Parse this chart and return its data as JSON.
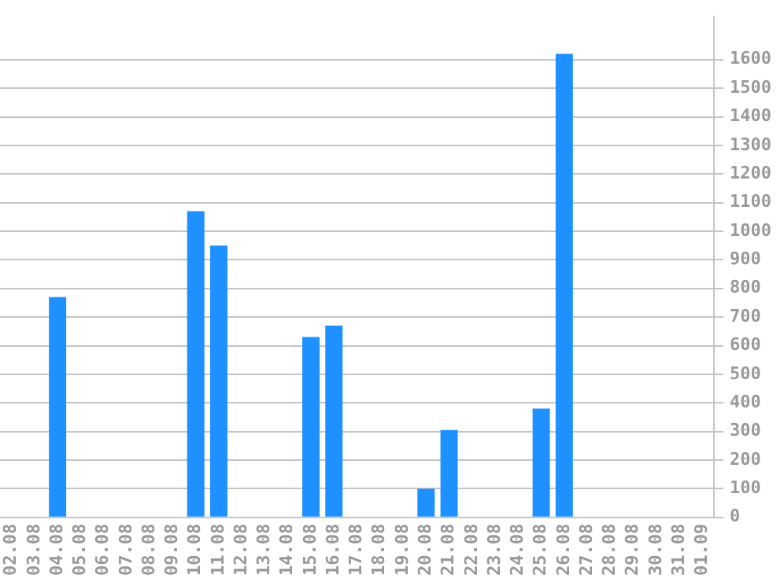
{
  "chart_data": {
    "type": "bar",
    "categories": [
      "02.08",
      "03.08",
      "04.08",
      "05.08",
      "06.08",
      "07.08",
      "08.08",
      "09.08",
      "10.08",
      "11.08",
      "12.08",
      "13.08",
      "14.08",
      "15.08",
      "16.08",
      "17.08",
      "18.08",
      "19.08",
      "20.08",
      "21.08",
      "22.08",
      "23.08",
      "24.08",
      "25.08",
      "26.08",
      "27.08",
      "28.08",
      "29.08",
      "30.08",
      "31.08",
      "01.09"
    ],
    "values": [
      0,
      0,
      770,
      0,
      0,
      0,
      0,
      0,
      1070,
      950,
      0,
      0,
      0,
      630,
      670,
      0,
      0,
      0,
      100,
      305,
      0,
      0,
      0,
      380,
      1620,
      0,
      0,
      0,
      0,
      0,
      0
    ],
    "color": "#1e90ff",
    "ylim": [
      0,
      1750
    ],
    "yticks": [
      0,
      100,
      200,
      300,
      400,
      500,
      600,
      700,
      800,
      900,
      1000,
      1100,
      1200,
      1300,
      1400,
      1500,
      1600
    ],
    "grid": "y",
    "legend": false
  }
}
